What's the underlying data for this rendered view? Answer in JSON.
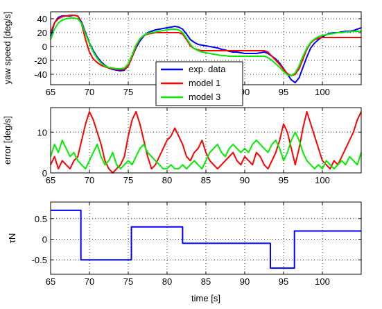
{
  "chart_data": [
    {
      "type": "line",
      "ylabel": "yaw speed [deg/s]",
      "xlim": [
        65,
        105
      ],
      "ylim": [
        -55,
        50
      ],
      "xticks": [
        "65",
        "70",
        "75",
        "80",
        "85",
        "90",
        "95",
        "100"
      ],
      "yticks": [
        "40",
        "20",
        "0",
        "-20",
        "-40"
      ],
      "grid": true,
      "legend": "center",
      "series": [
        {
          "name": "exp. data",
          "color": "#0000ff",
          "x": [
            65,
            65.5,
            66,
            66.5,
            67,
            67.5,
            68,
            68.5,
            69,
            69.5,
            70,
            70.5,
            71,
            71.5,
            72,
            72.5,
            73,
            73.5,
            74,
            74.5,
            75,
            75.5,
            76,
            76.5,
            77,
            77.5,
            78,
            78.5,
            79,
            79.5,
            80,
            80.5,
            81,
            81.5,
            82,
            82.5,
            83,
            83.5,
            84,
            84.5,
            85,
            85.5,
            86,
            86.5,
            87,
            87.5,
            88,
            88.5,
            89,
            89.5,
            90,
            90.5,
            91,
            91.5,
            92,
            92.5,
            93,
            93.5,
            94,
            94.5,
            95,
            95.5,
            96,
            96.5,
            97,
            97.5,
            98,
            98.5,
            99,
            99.5,
            100,
            100.5,
            101,
            101.5,
            102,
            102.5,
            103,
            103.5,
            104,
            104.5,
            105
          ],
          "y": [
            15,
            34,
            42,
            44,
            44,
            44,
            45,
            44,
            35,
            20,
            5,
            -6,
            -15,
            -22,
            -27,
            -31,
            -33,
            -34,
            -35,
            -34,
            -28,
            -15,
            -2,
            8,
            15,
            20,
            22,
            24,
            25,
            26,
            27,
            28,
            29,
            28,
            25,
            18,
            10,
            6,
            3,
            2,
            1,
            0,
            -1,
            -2,
            -4,
            -5,
            -7,
            -8,
            -8,
            -9,
            -10,
            -10,
            -10,
            -10,
            -9,
            -8,
            -10,
            -14,
            -18,
            -24,
            -32,
            -40,
            -48,
            -52,
            -45,
            -30,
            -15,
            -2,
            5,
            10,
            14,
            17,
            19,
            20,
            20,
            21,
            22,
            22,
            23,
            25,
            27
          ]
        },
        {
          "name": "model 1",
          "color": "#ff0000",
          "x": [
            65,
            65.5,
            66,
            66.5,
            67,
            67.5,
            68,
            68.5,
            69,
            69.5,
            70,
            70.5,
            71,
            71.5,
            72,
            72.5,
            73,
            73.5,
            74,
            74.5,
            75,
            75.5,
            76,
            76.5,
            77,
            77.5,
            78,
            78.5,
            79,
            79.5,
            80,
            80.5,
            81,
            81.5,
            82,
            82.5,
            83,
            83.5,
            84,
            84.5,
            85,
            85.5,
            86,
            86.5,
            87,
            87.5,
            88,
            88.5,
            89,
            89.5,
            90,
            90.5,
            91,
            91.5,
            92,
            92.5,
            93,
            93.5,
            94,
            94.5,
            95,
            95.5,
            96,
            96.5,
            97,
            97.5,
            98,
            98.5,
            99,
            99.5,
            100,
            100.5,
            101,
            101.5,
            102,
            102.5,
            103,
            103.5,
            104,
            104.5,
            105
          ],
          "y": [
            20,
            34,
            40,
            43,
            44,
            45,
            45,
            44,
            32,
            10,
            -8,
            -18,
            -23,
            -27,
            -29,
            -31,
            -32,
            -33,
            -33,
            -33,
            -28,
            -15,
            0,
            11,
            16,
            18,
            19,
            20,
            20,
            20,
            20,
            20,
            20,
            20,
            18,
            10,
            1,
            -3,
            -5,
            -6,
            -6,
            -6,
            -6,
            -6,
            -6,
            -6,
            -6,
            -6,
            -6,
            -6,
            -6,
            -6,
            -6,
            -6,
            -6,
            -6,
            -8,
            -14,
            -20,
            -26,
            -33,
            -39,
            -42,
            -40,
            -32,
            -18,
            -4,
            5,
            10,
            12,
            13,
            13,
            13,
            13,
            13,
            13,
            13,
            13,
            13,
            13,
            13
          ]
        },
        {
          "name": "model 3",
          "color": "#00ee00",
          "x": [
            65,
            65.5,
            66,
            66.5,
            67,
            67.5,
            68,
            68.5,
            69,
            69.5,
            70,
            70.5,
            71,
            71.5,
            72,
            72.5,
            73,
            73.5,
            74,
            74.5,
            75,
            75.5,
            76,
            76.5,
            77,
            77.5,
            78,
            78.5,
            79,
            79.5,
            80,
            80.5,
            81,
            81.5,
            82,
            82.5,
            83,
            83.5,
            84,
            84.5,
            85,
            85.5,
            86,
            86.5,
            87,
            87.5,
            88,
            88.5,
            89,
            89.5,
            90,
            90.5,
            91,
            91.5,
            92,
            92.5,
            93,
            93.5,
            94,
            94.5,
            95,
            95.5,
            96,
            96.5,
            97,
            97.5,
            98,
            98.5,
            99,
            99.5,
            100,
            100.5,
            101,
            101.5,
            102,
            102.5,
            103,
            103.5,
            104,
            104.5,
            105
          ],
          "y": [
            10,
            25,
            34,
            38,
            40,
            41,
            41,
            40,
            33,
            18,
            4,
            -8,
            -17,
            -24,
            -28,
            -30,
            -31,
            -32,
            -32,
            -31,
            -25,
            -12,
            2,
            11,
            16,
            19,
            20,
            21,
            22,
            23,
            24,
            25,
            25,
            24,
            20,
            12,
            3,
            -3,
            -6,
            -8,
            -9,
            -10,
            -11,
            -12,
            -13,
            -13,
            -14,
            -14,
            -14,
            -14,
            -14,
            -14,
            -14,
            -14,
            -14,
            -14,
            -16,
            -20,
            -25,
            -30,
            -36,
            -41,
            -42,
            -38,
            -28,
            -14,
            -2,
            6,
            11,
            14,
            16,
            17,
            18,
            19,
            20,
            20,
            21,
            21,
            22,
            22,
            22
          ]
        }
      ]
    },
    {
      "type": "line",
      "ylabel": "error [deg/s]",
      "xlim": [
        65,
        105
      ],
      "ylim": [
        0,
        16
      ],
      "xticks": [
        "65",
        "70",
        "75",
        "80",
        "85",
        "90",
        "95",
        "100"
      ],
      "yticks": [
        "10",
        "0"
      ],
      "grid": true,
      "series": [
        {
          "color": "#ff0000",
          "x": [
            65,
            65.5,
            66,
            66.5,
            67,
            67.5,
            68,
            68.5,
            69,
            69.5,
            70,
            70.5,
            71,
            71.5,
            72,
            72.5,
            73,
            73.5,
            74,
            74.5,
            75,
            75.5,
            76,
            76.5,
            77,
            77.5,
            78,
            78.5,
            79,
            79.5,
            80,
            80.5,
            81,
            81.5,
            82,
            82.5,
            83,
            83.5,
            84,
            84.5,
            85,
            85.5,
            86,
            86.5,
            87,
            87.5,
            88,
            88.5,
            89,
            89.5,
            90,
            90.5,
            91,
            91.5,
            92,
            92.5,
            93,
            93.5,
            94,
            94.5,
            95,
            95.5,
            96,
            96.5,
            97,
            97.5,
            98,
            98.5,
            99,
            99.5,
            100,
            100.5,
            101,
            101.5,
            102,
            102.5,
            103,
            103.5,
            104,
            104.5,
            105
          ],
          "y": [
            2,
            4,
            1,
            3,
            2,
            1,
            3,
            4,
            8,
            12,
            15,
            13,
            10,
            7,
            3,
            1,
            0,
            1,
            2,
            4,
            9,
            13,
            15,
            12,
            8,
            4,
            1,
            2,
            4,
            6,
            8,
            9,
            11,
            9,
            7,
            4,
            3,
            5,
            6,
            8,
            5,
            3,
            2,
            1,
            2,
            3,
            4,
            5,
            3,
            2,
            4,
            3,
            2,
            5,
            4,
            2,
            1,
            3,
            5,
            8,
            12,
            10,
            6,
            2,
            6,
            11,
            15,
            12,
            9,
            6,
            3,
            2,
            1,
            3,
            2,
            4,
            6,
            8,
            10,
            13,
            15
          ]
        },
        {
          "color": "#00ee00",
          "x": [
            65,
            65.5,
            66,
            66.5,
            67,
            67.5,
            68,
            68.5,
            69,
            69.5,
            70,
            70.5,
            71,
            71.5,
            72,
            72.5,
            73,
            73.5,
            74,
            74.5,
            75,
            75.5,
            76,
            76.5,
            77,
            77.5,
            78,
            78.5,
            79,
            79.5,
            80,
            80.5,
            81,
            81.5,
            82,
            82.5,
            83,
            83.5,
            84,
            84.5,
            85,
            85.5,
            86,
            86.5,
            87,
            87.5,
            88,
            88.5,
            89,
            89.5,
            90,
            90.5,
            91,
            91.5,
            92,
            92.5,
            93,
            93.5,
            94,
            94.5,
            95,
            95.5,
            96,
            96.5,
            97,
            97.5,
            98,
            98.5,
            99,
            99.5,
            100,
            100.5,
            101,
            101.5,
            102,
            102.5,
            103,
            103.5,
            104,
            104.5,
            105
          ],
          "y": [
            4,
            7,
            5,
            8,
            6,
            4,
            5,
            3,
            2,
            1,
            3,
            5,
            7,
            4,
            2,
            3,
            5,
            2,
            1,
            2,
            3,
            2,
            4,
            6,
            7,
            5,
            4,
            3,
            2,
            1,
            1,
            2,
            1,
            1,
            2,
            1,
            2,
            3,
            2,
            1,
            3,
            5,
            6,
            7,
            5,
            4,
            6,
            7,
            6,
            5,
            6,
            5,
            7,
            8,
            7,
            6,
            5,
            7,
            8,
            6,
            3,
            5,
            8,
            10,
            8,
            5,
            3,
            2,
            1,
            2,
            1,
            3,
            2,
            1,
            2,
            3,
            2,
            4,
            3,
            2,
            5
          ]
        }
      ]
    },
    {
      "type": "line",
      "ylabel": "τN",
      "xlabel": "time [s]",
      "xlim": [
        65,
        105
      ],
      "ylim": [
        -0.85,
        0.9
      ],
      "xticks": [
        "65",
        "70",
        "75",
        "80",
        "85",
        "90",
        "95",
        "100"
      ],
      "yticks": [
        "0.5",
        "0",
        "-0.5"
      ],
      "grid": true,
      "series": [
        {
          "color": "#0000ff",
          "step": true,
          "x": [
            65,
            68.9,
            68.9,
            75.4,
            75.4,
            82,
            82,
            93.3,
            93.3,
            96.4,
            96.4,
            105
          ],
          "y": [
            0.7,
            0.7,
            -0.5,
            -0.5,
            0.3,
            0.3,
            -0.1,
            -0.1,
            -0.7,
            -0.7,
            0.2,
            0.2
          ]
        }
      ]
    }
  ]
}
